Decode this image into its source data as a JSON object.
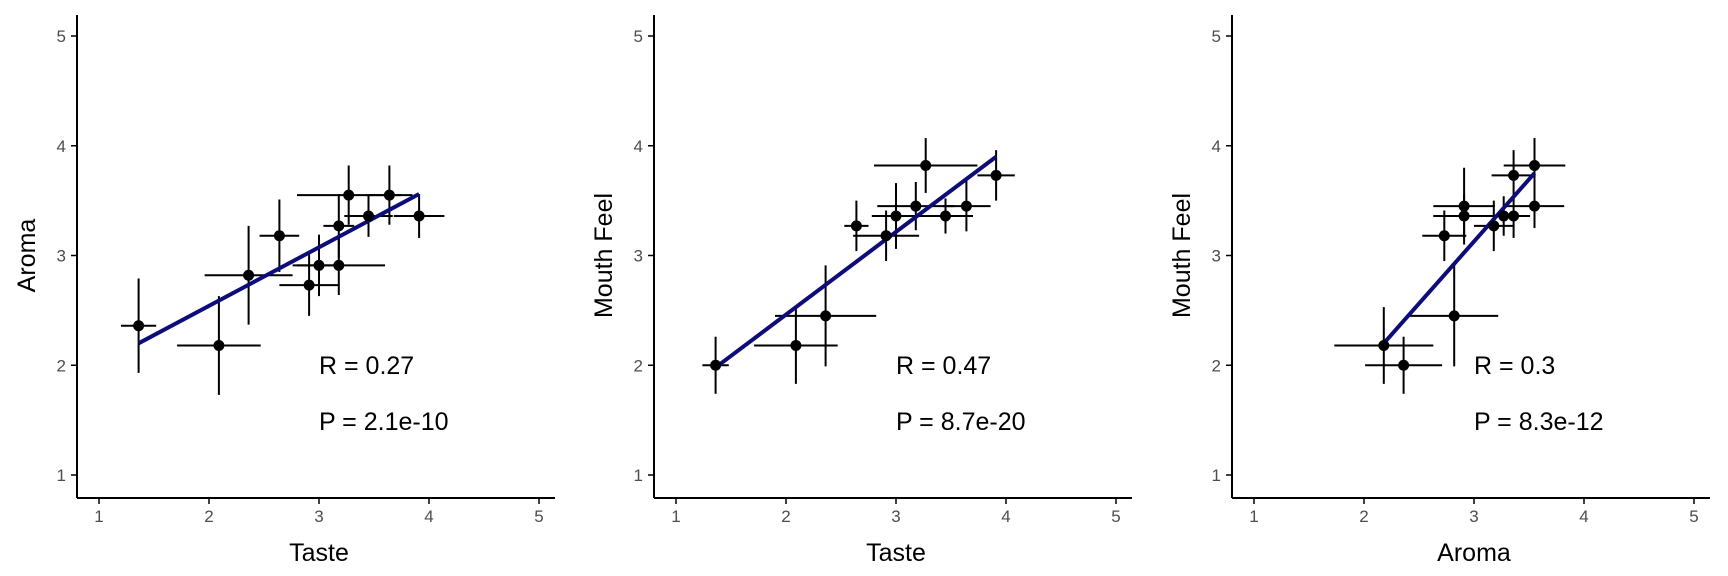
{
  "chart_data": [
    {
      "type": "scatter",
      "xlabel": "Taste",
      "ylabel": "Aroma",
      "xlim": [
        1,
        5
      ],
      "ylim": [
        1,
        5
      ],
      "ticks": [
        1,
        2,
        3,
        4,
        5
      ],
      "grid": false,
      "annotations": [
        "R = 0.27",
        "P = 2.1e-10"
      ],
      "fit_line": {
        "x": [
          1.36,
          3.91
        ],
        "y": [
          2.2,
          3.56
        ]
      },
      "points": [
        {
          "x": 1.36,
          "y": 2.36,
          "xerr": 0.16,
          "yerr": 0.43
        },
        {
          "x": 2.09,
          "y": 2.18,
          "xerr": 0.38,
          "yerr": 0.45
        },
        {
          "x": 2.36,
          "y": 2.82,
          "xerr": 0.4,
          "yerr": 0.45
        },
        {
          "x": 2.64,
          "y": 3.18,
          "xerr": 0.18,
          "yerr": 0.33
        },
        {
          "x": 2.91,
          "y": 2.73,
          "xerr": 0.27,
          "yerr": 0.28
        },
        {
          "x": 3.0,
          "y": 2.91,
          "xerr": 0.2,
          "yerr": 0.28
        },
        {
          "x": 3.18,
          "y": 2.91,
          "xerr": 0.42,
          "yerr": 0.27
        },
        {
          "x": 3.18,
          "y": 3.27,
          "xerr": 0.14,
          "yerr": 0.29
        },
        {
          "x": 3.27,
          "y": 3.55,
          "xerr": 0.47,
          "yerr": 0.27
        },
        {
          "x": 3.45,
          "y": 3.36,
          "xerr": 0.22,
          "yerr": 0.19
        },
        {
          "x": 3.64,
          "y": 3.55,
          "xerr": 0.21,
          "yerr": 0.27
        },
        {
          "x": 3.91,
          "y": 3.36,
          "xerr": 0.23,
          "yerr": 0.2
        }
      ]
    },
    {
      "type": "scatter",
      "xlabel": "Taste",
      "ylabel": "Mouth Feel",
      "xlim": [
        1,
        5
      ],
      "ylim": [
        1,
        5
      ],
      "ticks": [
        1,
        2,
        3,
        4,
        5
      ],
      "grid": false,
      "annotations": [
        "R = 0.47",
        "P = 8.7e-20"
      ],
      "fit_line": {
        "x": [
          1.36,
          3.91
        ],
        "y": [
          1.98,
          3.9
        ]
      },
      "points": [
        {
          "x": 1.36,
          "y": 2.0,
          "xerr": 0.12,
          "yerr": 0.26
        },
        {
          "x": 2.09,
          "y": 2.18,
          "xerr": 0.38,
          "yerr": 0.35
        },
        {
          "x": 2.36,
          "y": 2.45,
          "xerr": 0.46,
          "yerr": 0.46
        },
        {
          "x": 2.64,
          "y": 3.27,
          "xerr": 0.11,
          "yerr": 0.23
        },
        {
          "x": 2.91,
          "y": 3.18,
          "xerr": 0.3,
          "yerr": 0.23
        },
        {
          "x": 3.0,
          "y": 3.36,
          "xerr": 0.22,
          "yerr": 0.3
        },
        {
          "x": 3.18,
          "y": 3.45,
          "xerr": 0.35,
          "yerr": 0.22
        },
        {
          "x": 3.27,
          "y": 3.82,
          "xerr": 0.47,
          "yerr": 0.25
        },
        {
          "x": 3.45,
          "y": 3.36,
          "xerr": 0.25,
          "yerr": 0.16
        },
        {
          "x": 3.64,
          "y": 3.45,
          "xerr": 0.22,
          "yerr": 0.23
        },
        {
          "x": 3.91,
          "y": 3.73,
          "xerr": 0.17,
          "yerr": 0.23
        }
      ]
    },
    {
      "type": "scatter",
      "xlabel": "Aroma",
      "ylabel": "Mouth Feel",
      "xlim": [
        1,
        5
      ],
      "ylim": [
        1,
        5
      ],
      "ticks": [
        1,
        2,
        3,
        4,
        5
      ],
      "grid": false,
      "annotations": [
        "R = 0.3",
        "P = 8.3e-12"
      ],
      "fit_line": {
        "x": [
          2.18,
          3.55
        ],
        "y": [
          2.2,
          3.75
        ]
      },
      "points": [
        {
          "x": 2.18,
          "y": 2.18,
          "xerr": 0.45,
          "yerr": 0.35
        },
        {
          "x": 2.36,
          "y": 2.0,
          "xerr": 0.35,
          "yerr": 0.26
        },
        {
          "x": 2.82,
          "y": 2.45,
          "xerr": 0.4,
          "yerr": 0.46
        },
        {
          "x": 2.73,
          "y": 3.18,
          "xerr": 0.2,
          "yerr": 0.23
        },
        {
          "x": 2.91,
          "y": 3.36,
          "xerr": 0.28,
          "yerr": 0.2
        },
        {
          "x": 2.91,
          "y": 3.45,
          "xerr": 0.28,
          "yerr": 0.35
        },
        {
          "x": 3.18,
          "y": 3.27,
          "xerr": 0.18,
          "yerr": 0.23
        },
        {
          "x": 3.27,
          "y": 3.36,
          "xerr": 0.18,
          "yerr": 0.18
        },
        {
          "x": 3.36,
          "y": 3.36,
          "xerr": 0.15,
          "yerr": 0.2
        },
        {
          "x": 3.36,
          "y": 3.73,
          "xerr": 0.2,
          "yerr": 0.23
        },
        {
          "x": 3.55,
          "y": 3.45,
          "xerr": 0.27,
          "yerr": 0.2
        },
        {
          "x": 3.55,
          "y": 3.82,
          "xerr": 0.28,
          "yerr": 0.25
        }
      ]
    }
  ],
  "colors": {
    "fit_line": "#0c0c7a",
    "points": "#000000",
    "axis": "#000000",
    "tick_label": "#4d4d4d"
  }
}
